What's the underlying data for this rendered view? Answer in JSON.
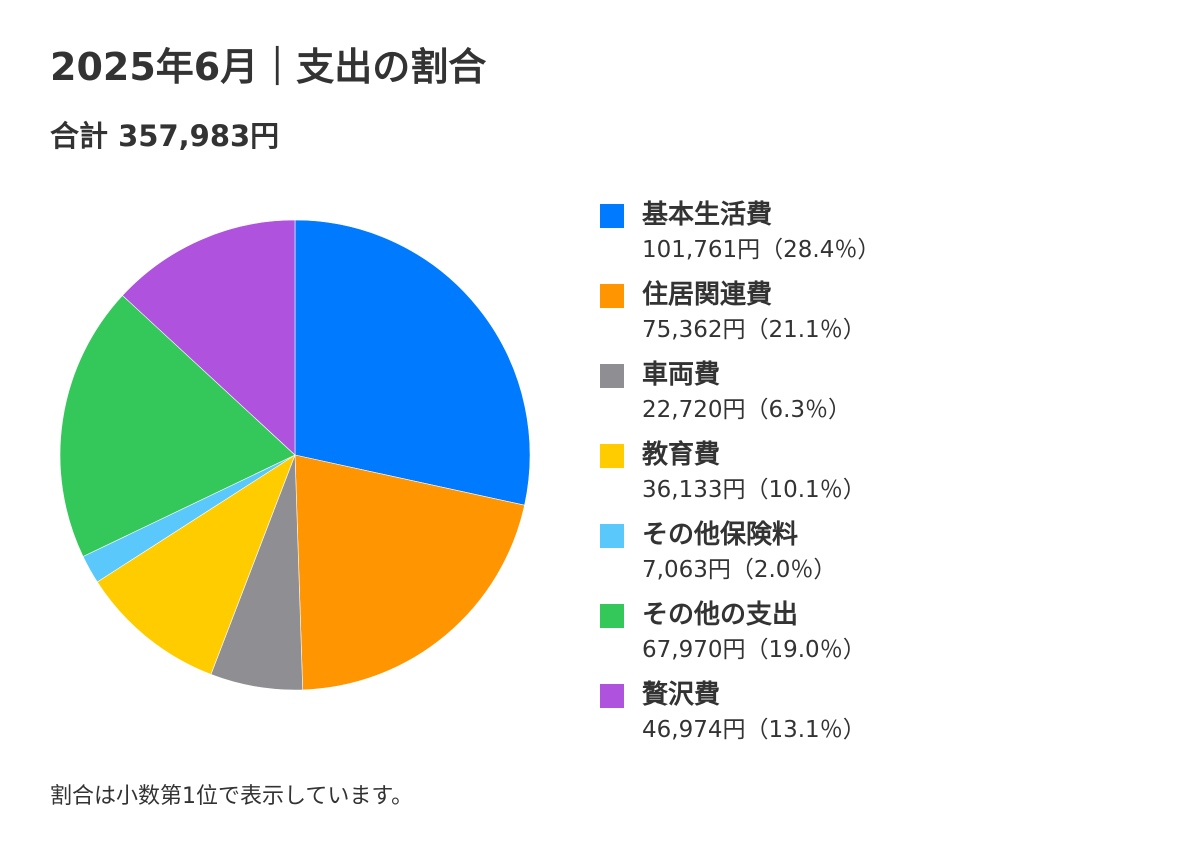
{
  "title": "2025年6月｜支出の割合",
  "total": "合計 357,983円",
  "footnote": "割合は小数第1位で表示しています。",
  "chart_data": {
    "type": "pie",
    "title": "2025年6月｜支出の割合",
    "total": 357983,
    "legend_position": "right",
    "start_angle_deg": 0,
    "direction": "clockwise",
    "categories": [
      "基本生活費",
      "住居関連費",
      "車両費",
      "教育費",
      "その他保険料",
      "その他の支出",
      "贅沢費"
    ],
    "values": [
      101761,
      75362,
      22720,
      36133,
      7063,
      67970,
      46974
    ],
    "percents": [
      28.4,
      21.1,
      6.3,
      10.1,
      2.0,
      19.0,
      13.1
    ],
    "value_labels": [
      "101,761円（28.4％）",
      "75,362円（21.1％）",
      "22,720円（6.3％）",
      "36,133円（10.1％）",
      "7,063円（2.0％）",
      "67,970円（19.0％）",
      "46,974円（13.1％）"
    ],
    "colors": [
      "#007AFF",
      "#FF9500",
      "#8E8E93",
      "#FFCC00",
      "#5AC8FA",
      "#34C759",
      "#AF52DE"
    ]
  }
}
